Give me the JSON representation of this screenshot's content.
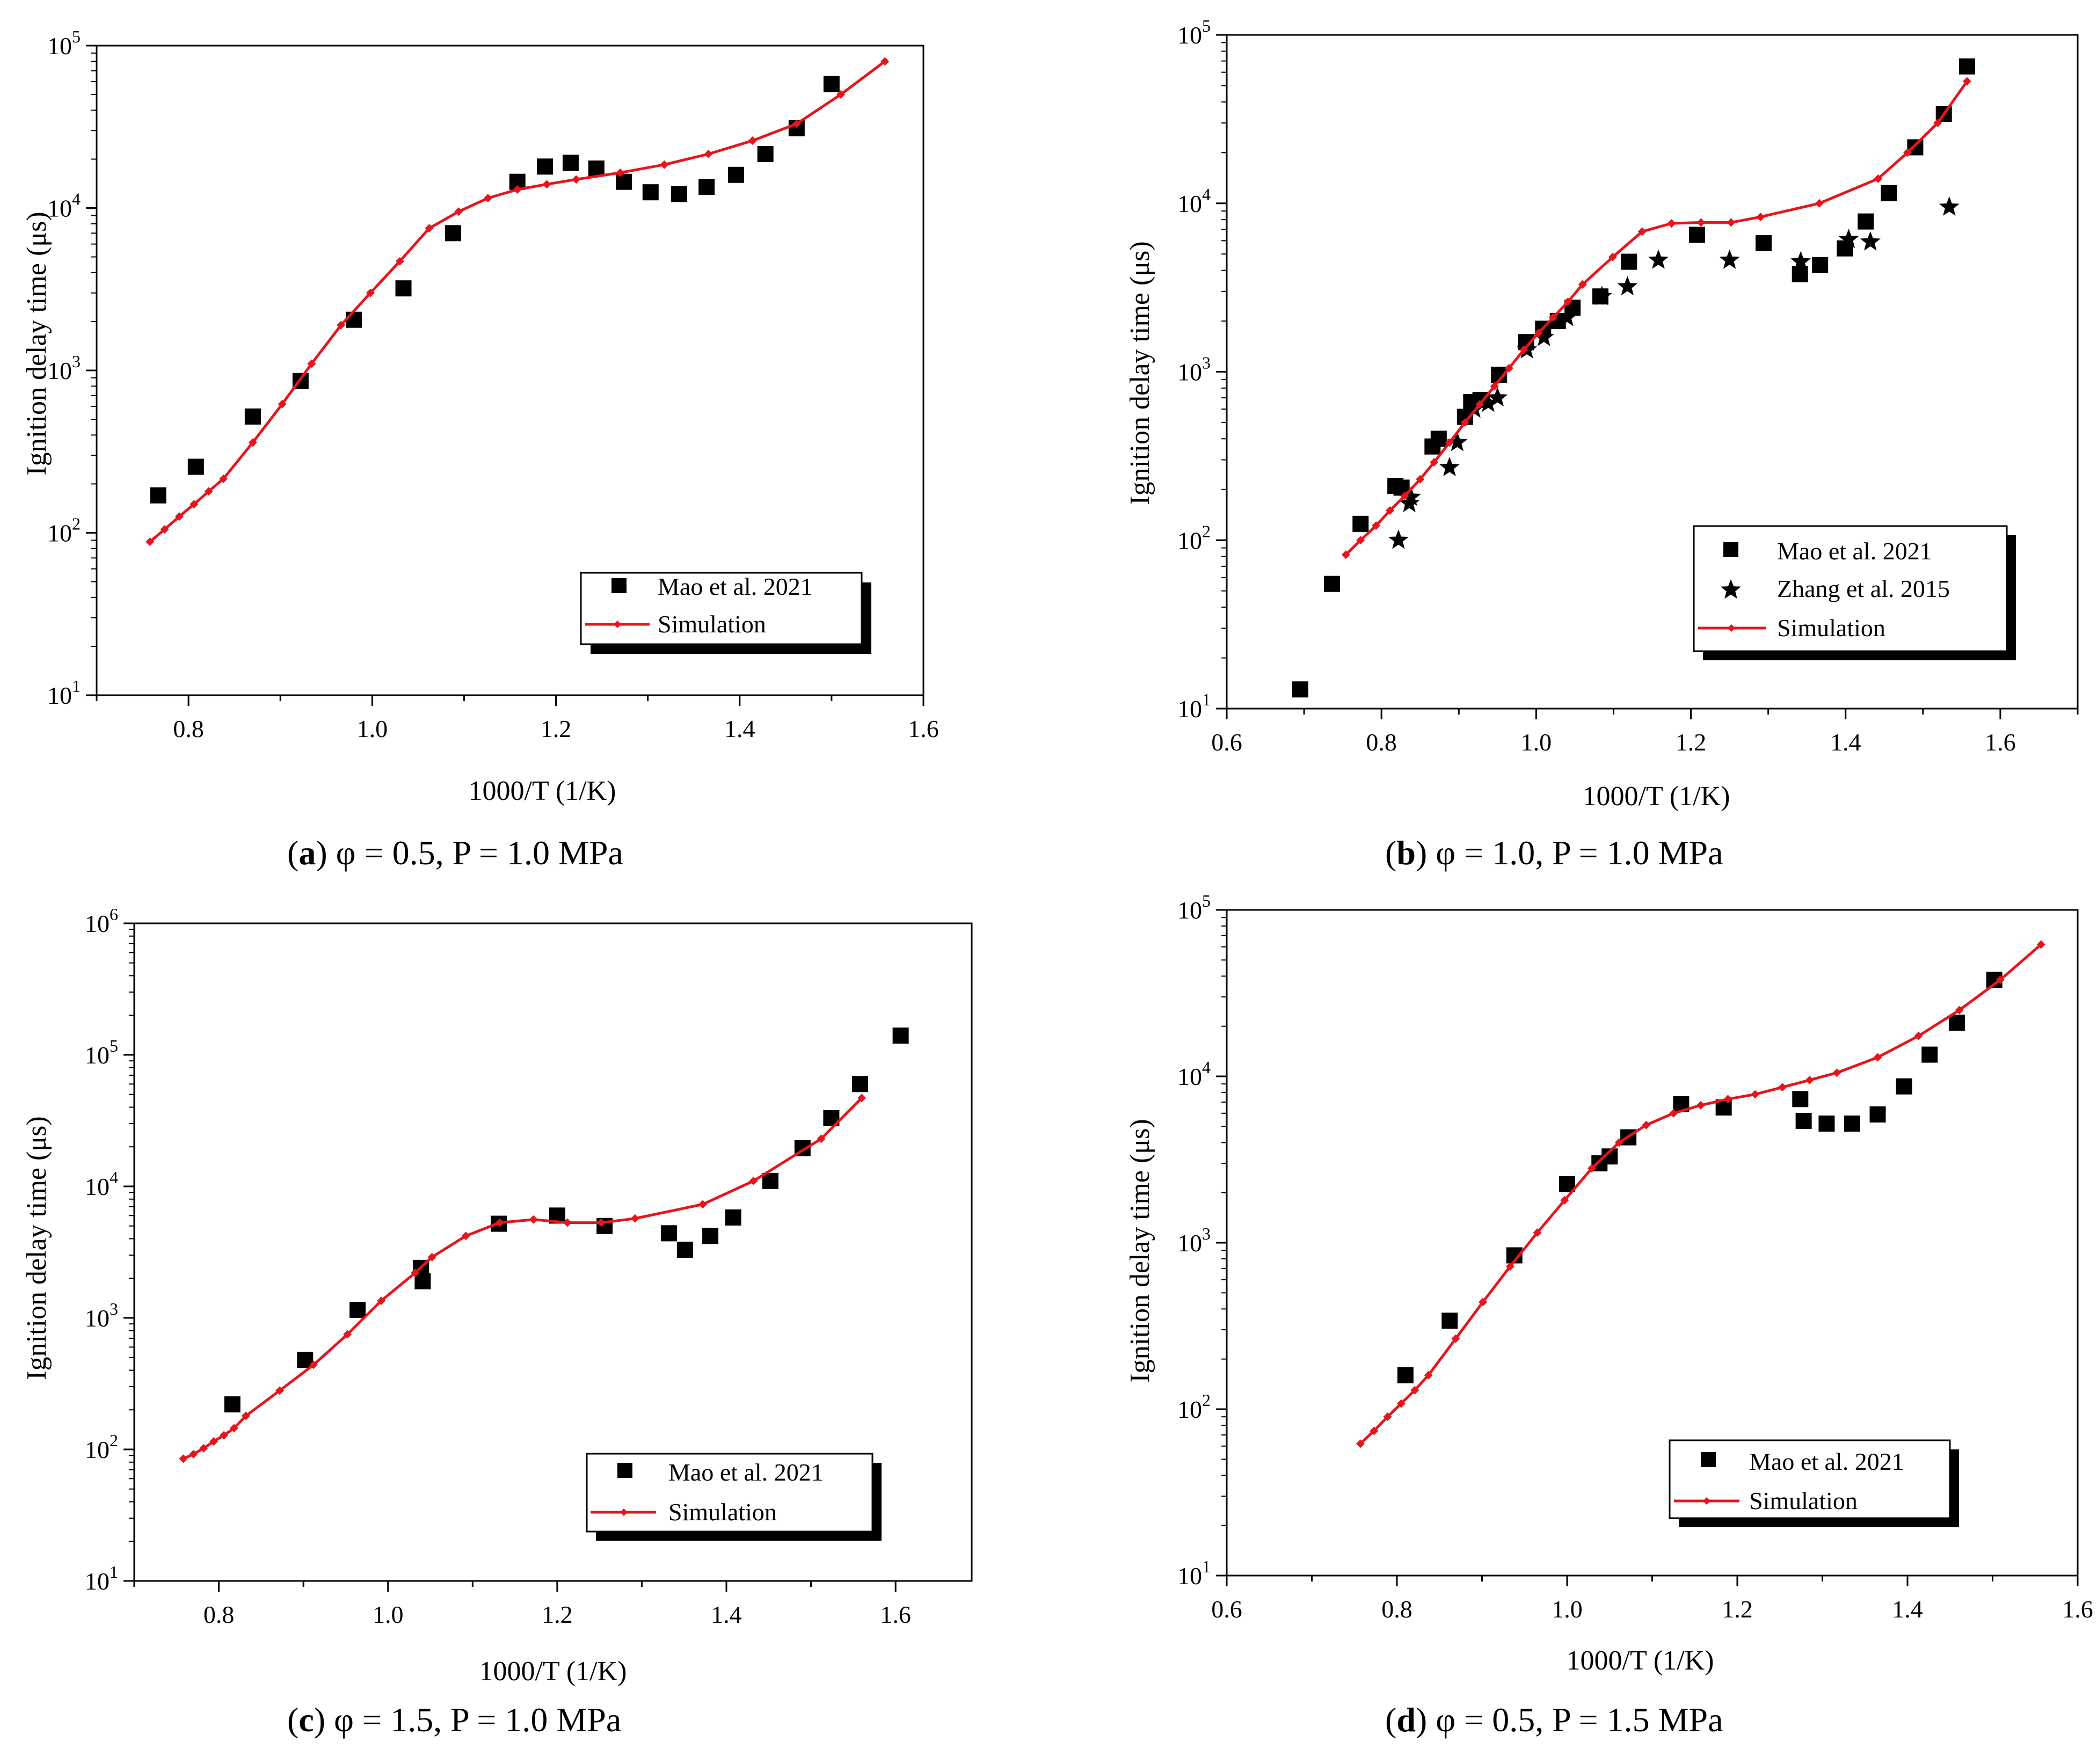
{
  "figure": {
    "colors": {
      "simulation": "#e8141c",
      "markers": "#000000",
      "axes": "#000000",
      "background": "#ffffff"
    }
  },
  "chart_data": [
    {
      "id": "a",
      "type": "scatter+line",
      "yscale": "log",
      "caption": {
        "letter": "a",
        "text": " φ = 0.5, P = 1.0 MPa"
      },
      "xlabel": "1000/T (1/K)",
      "ylabel": "Ignition delay time (μs)",
      "xlim": [
        0.7,
        1.6
      ],
      "ylim_exp": [
        1,
        5
      ],
      "xticks": [
        0.8,
        1.0,
        1.2,
        1.4,
        1.6
      ],
      "xtick_labels": [
        "0.8",
        "1.0",
        "1.2",
        "1.4",
        "1.6"
      ],
      "ytick_exps": [
        1,
        2,
        3,
        4,
        5
      ],
      "legend_position": "bottom-right",
      "series": [
        {
          "name": "Mao et al. 2021",
          "kind": "square",
          "x": [
            0.767,
            0.808,
            0.87,
            0.922,
            0.98,
            1.034,
            1.088,
            1.158,
            1.188,
            1.216,
            1.244,
            1.274,
            1.303,
            1.334,
            1.364,
            1.396,
            1.428,
            1.462,
            1.5
          ],
          "y": [
            170,
            255,
            520,
            860,
            2050,
            3200,
            7000,
            14500,
            18000,
            19000,
            17500,
            14500,
            12500,
            12200,
            13500,
            16000,
            21500,
            31000,
            58000
          ]
        },
        {
          "name": "Simulation",
          "kind": "line",
          "x": [
            0.758,
            0.774,
            0.79,
            0.806,
            0.822,
            0.838,
            0.87,
            0.902,
            0.934,
            0.966,
            0.998,
            1.03,
            1.062,
            1.094,
            1.126,
            1.158,
            1.19,
            1.222,
            1.27,
            1.318,
            1.366,
            1.414,
            1.462,
            1.51,
            1.558
          ],
          "y": [
            88,
            105,
            126,
            150,
            180,
            215,
            360,
            620,
            1100,
            1900,
            3000,
            4700,
            7500,
            9500,
            11500,
            13000,
            14000,
            15000,
            16500,
            18500,
            21500,
            26000,
            33000,
            50000,
            80000
          ]
        }
      ]
    },
    {
      "id": "b",
      "type": "scatter+line",
      "yscale": "log",
      "caption": {
        "letter": "b",
        "text": " φ = 1.0, P = 1.0 MPa"
      },
      "xlabel": "1000/T (1/K)",
      "ylabel": "Ignition delay time (μs)",
      "xlim": [
        0.6,
        1.7
      ],
      "ylim_exp": [
        1,
        5
      ],
      "xticks": [
        0.6,
        0.8,
        1.0,
        1.2,
        1.4,
        1.6
      ],
      "xtick_labels": [
        "0.6",
        "0.8",
        "1.0",
        "1.2",
        "1.4",
        "1.6"
      ],
      "ytick_exps": [
        1,
        2,
        3,
        4,
        5
      ],
      "legend_position": "bottom-right",
      "series": [
        {
          "name": "Mao et al. 2021",
          "kind": "square",
          "x": [
            0.695,
            0.736,
            0.773,
            0.818,
            0.826,
            0.866,
            0.874,
            0.908,
            0.916,
            0.928,
            0.952,
            0.987,
            1.009,
            1.028,
            1.047,
            1.083,
            1.12,
            1.208,
            1.294,
            1.341,
            1.367,
            1.399,
            1.426,
            1.456,
            1.49,
            1.527,
            1.557
          ],
          "y": [
            13,
            55,
            125,
            210,
            205,
            360,
            400,
            540,
            660,
            680,
            960,
            1500,
            1800,
            2000,
            2400,
            2800,
            4500,
            6500,
            5800,
            3800,
            4300,
            5400,
            7800,
            11500,
            21500,
            34000,
            65000
          ]
        },
        {
          "name": "Zhang et al. 2015",
          "kind": "star",
          "x": [
            0.822,
            0.836,
            0.838,
            0.888,
            0.898,
            0.92,
            0.938,
            0.95,
            0.988,
            1.01,
            1.04,
            1.085,
            1.118,
            1.158,
            1.25,
            1.342,
            1.404,
            1.432,
            1.534
          ],
          "y": [
            100,
            165,
            180,
            270,
            380,
            600,
            650,
            700,
            1350,
            1600,
            2100,
            2800,
            3200,
            4600,
            4600,
            4500,
            6100,
            5900,
            9500
          ]
        },
        {
          "name": "Simulation",
          "kind": "line",
          "x": [
            0.754,
            0.773,
            0.793,
            0.811,
            0.83,
            0.85,
            0.868,
            0.888,
            0.908,
            0.927,
            0.946,
            0.965,
            0.984,
            1.003,
            1.022,
            1.041,
            1.06,
            1.099,
            1.137,
            1.175,
            1.213,
            1.252,
            1.29,
            1.366,
            1.442,
            1.48,
            1.519,
            1.557
          ],
          "y": [
            82,
            100,
            122,
            150,
            183,
            230,
            290,
            380,
            500,
            640,
            820,
            1050,
            1350,
            1700,
            2100,
            2600,
            3300,
            4800,
            6800,
            7600,
            7700,
            7700,
            8300,
            10000,
            14000,
            20000,
            30000,
            53000
          ]
        }
      ]
    },
    {
      "id": "c",
      "type": "scatter+line",
      "yscale": "log",
      "caption": {
        "letter": "c",
        "text": " φ = 1.5, P = 1.0 MPa"
      },
      "xlabel": "1000/T (1/K)",
      "ylabel": "Ignition delay time (μs)",
      "xlim": [
        0.7,
        1.69
      ],
      "ylim_exp": [
        1,
        6
      ],
      "xticks": [
        0.8,
        1.0,
        1.2,
        1.4,
        1.6
      ],
      "xtick_labels": [
        "0.8",
        "1.0",
        "1.2",
        "1.4",
        "1.6"
      ],
      "ytick_exps": [
        1,
        2,
        3,
        4,
        5,
        6
      ],
      "legend_position": "bottom-right",
      "series": [
        {
          "name": "Mao et al. 2021",
          "kind": "square",
          "x": [
            0.816,
            0.902,
            0.964,
            1.039,
            1.041,
            1.131,
            1.2,
            1.256,
            1.332,
            1.351,
            1.381,
            1.408,
            1.452,
            1.49,
            1.524,
            1.558,
            1.606
          ],
          "y": [
            220,
            480,
            1150,
            2400,
            1900,
            5200,
            6000,
            5000,
            4400,
            3300,
            4200,
            5800,
            11000,
            19500,
            33000,
            60000,
            140000
          ]
        },
        {
          "name": "Simulation",
          "kind": "line",
          "x": [
            0.758,
            0.77,
            0.782,
            0.794,
            0.806,
            0.818,
            0.832,
            0.872,
            0.912,
            0.952,
            0.992,
            1.032,
            1.052,
            1.092,
            1.132,
            1.172,
            1.212,
            1.252,
            1.292,
            1.372,
            1.432,
            1.512,
            1.56
          ],
          "y": [
            85,
            92,
            102,
            115,
            128,
            145,
            180,
            280,
            440,
            750,
            1350,
            2200,
            2900,
            4200,
            5300,
            5600,
            5300,
            5300,
            5700,
            7300,
            11000,
            23000,
            47000
          ]
        }
      ]
    },
    {
      "id": "d",
      "type": "scatter+line",
      "yscale": "log",
      "caption": {
        "letter": "d",
        "text": " φ = 0.5, P = 1.5 MPa"
      },
      "xlabel": "1000/T (1/K)",
      "ylabel": "Ignition delay time (μs)",
      "xlim": [
        0.6,
        1.6
      ],
      "ylim_exp": [
        1,
        5
      ],
      "xticks": [
        0.6,
        0.8,
        1.0,
        1.2,
        1.4,
        1.6
      ],
      "xtick_labels": [
        "0.6",
        "0.8",
        "1.0",
        "1.2",
        "1.4",
        "1.6"
      ],
      "ytick_exps": [
        1,
        2,
        3,
        4,
        5
      ],
      "legend_position": "bottom-right",
      "series": [
        {
          "name": "Mao et al. 2021",
          "kind": "square",
          "x": [
            0.81,
            0.862,
            0.938,
            1.0,
            1.038,
            1.05,
            1.072,
            1.134,
            1.184,
            1.274,
            1.278,
            1.305,
            1.335,
            1.365,
            1.396,
            1.426,
            1.458,
            1.502
          ],
          "y": [
            160,
            340,
            840,
            2250,
            3000,
            3300,
            4300,
            6800,
            6500,
            7300,
            5400,
            5200,
            5200,
            5900,
            8700,
            13500,
            21000,
            38000
          ]
        },
        {
          "name": "Simulation",
          "kind": "line",
          "x": [
            0.757,
            0.773,
            0.789,
            0.805,
            0.821,
            0.837,
            0.869,
            0.901,
            0.933,
            0.965,
            0.997,
            1.029,
            1.061,
            1.093,
            1.125,
            1.157,
            1.189,
            1.221,
            1.253,
            1.285,
            1.317,
            1.365,
            1.413,
            1.461,
            1.509,
            1.557
          ],
          "y": [
            62,
            74,
            90,
            108,
            130,
            160,
            265,
            440,
            720,
            1150,
            1800,
            2800,
            4000,
            5100,
            6000,
            6700,
            7300,
            7800,
            8600,
            9500,
            10500,
            13000,
            17500,
            25000,
            38000,
            62000
          ]
        }
      ]
    }
  ]
}
